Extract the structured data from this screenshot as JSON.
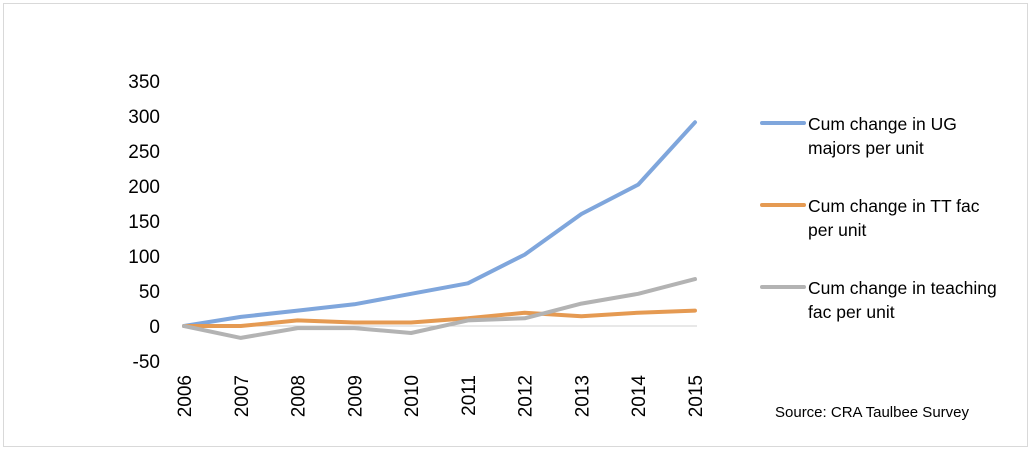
{
  "chart_data": {
    "type": "line",
    "x": [
      "2006",
      "2007",
      "2008",
      "2009",
      "2010",
      "2011",
      "2012",
      "2013",
      "2014",
      "2015"
    ],
    "ylim": [
      -50,
      350
    ],
    "yticks": [
      "350",
      "300",
      "250",
      "200",
      "150",
      "100",
      "50",
      "0",
      "-50"
    ],
    "series": [
      {
        "name": "Cum change in UG majors per unit",
        "color": "#7fa6dc",
        "values": [
          0,
          13,
          22,
          31,
          46,
          61,
          102,
          160,
          202,
          291
        ]
      },
      {
        "name": "Cum change in TT fac per unit",
        "color": "#e59a52",
        "values": [
          0,
          0,
          8,
          5,
          5,
          11,
          19,
          14,
          19,
          22
        ]
      },
      {
        "name": "Cum change in teaching fac per unit",
        "color": "#b3b3b3",
        "values": [
          0,
          -17,
          -3,
          -3,
          -10,
          8,
          11,
          32,
          46,
          67
        ]
      }
    ],
    "legend_position": "right",
    "grid": false
  },
  "source": "Source: CRA Taulbee Survey"
}
